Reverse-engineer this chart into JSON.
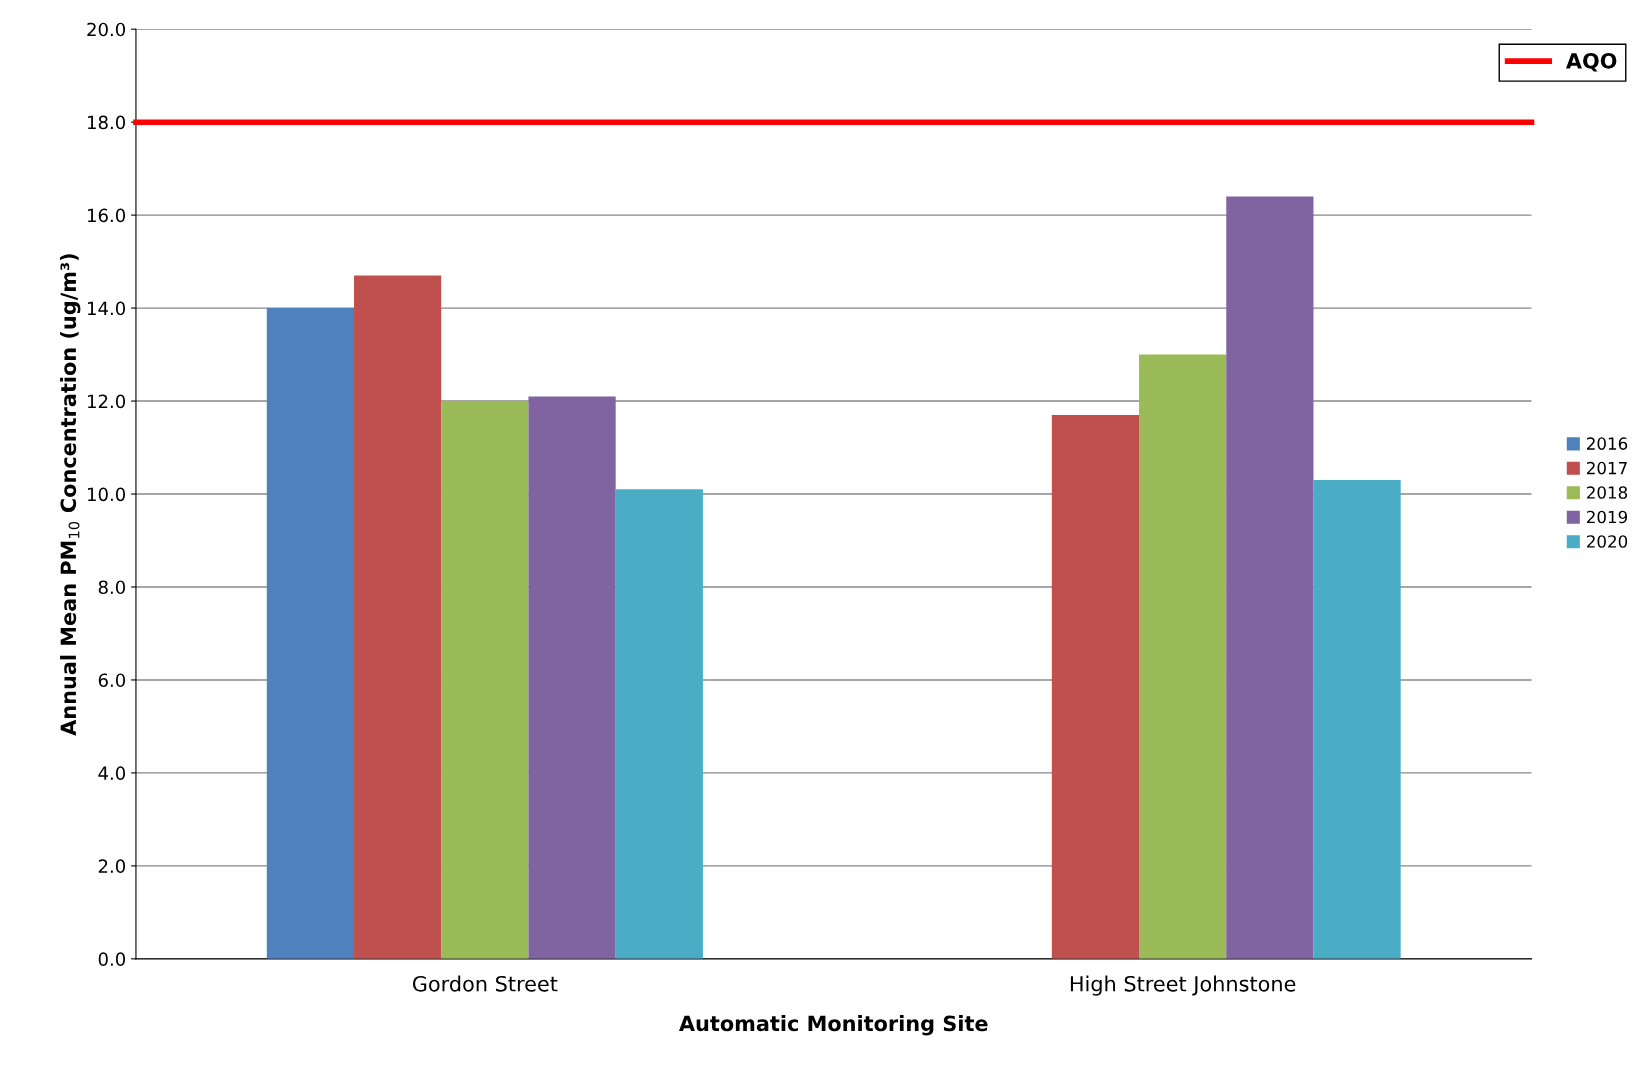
{
  "chart_data": {
    "type": "bar",
    "xlabel": "Automatic Monitoring Site",
    "ylabel": "Annual Mean PM$_{10}$ Concentration (ug/m³)",
    "categories": [
      "Gordon Street",
      "High Street Johnstone"
    ],
    "series": [
      {
        "name": "2016",
        "color": "#4f81bd",
        "values": [
          14.0,
          null
        ]
      },
      {
        "name": "2017",
        "color": "#c0504d",
        "values": [
          14.7,
          11.7
        ]
      },
      {
        "name": "2018",
        "color": "#9bbb59",
        "values": [
          12.0,
          13.0
        ]
      },
      {
        "name": "2019",
        "color": "#8064a2",
        "values": [
          12.1,
          16.4
        ]
      },
      {
        "name": "2020",
        "color": "#4bacc6",
        "values": [
          10.1,
          10.3
        ]
      }
    ],
    "ylim": [
      0,
      20
    ],
    "yticks": [
      {
        "value": 0,
        "label": "0.0"
      },
      {
        "value": 2,
        "label": "2.0"
      },
      {
        "value": 4,
        "label": "4.0"
      },
      {
        "value": 6,
        "label": "6.0"
      },
      {
        "value": 8,
        "label": "8.0"
      },
      {
        "value": 10,
        "label": "10.0"
      },
      {
        "value": 12,
        "label": "12.0"
      },
      {
        "value": 14,
        "label": "14.0"
      },
      {
        "value": 16,
        "label": "16.0"
      },
      {
        "value": 18,
        "label": "18.0"
      },
      {
        "value": 20,
        "label": "20.0"
      }
    ],
    "ref_lines": [
      {
        "axis": "y",
        "value": 18,
        "label": "AQO",
        "color": "#ff0000"
      }
    ],
    "grid": "y",
    "legend": "right"
  }
}
